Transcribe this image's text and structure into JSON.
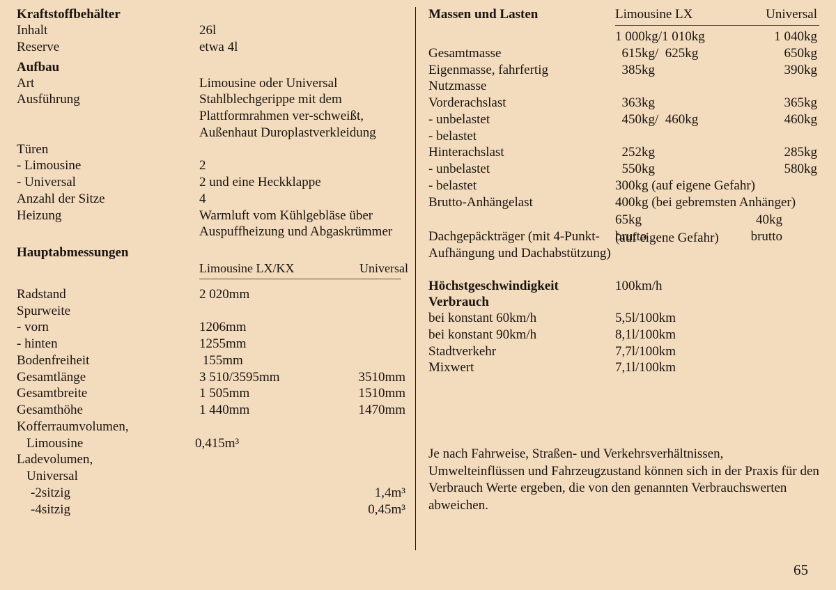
{
  "page_number": "65",
  "left": {
    "sec_fuel": {
      "title": "Kraftstoffbehälter",
      "rows": [
        {
          "label": "Inhalt",
          "value": "26l"
        },
        {
          "label": "Reserve",
          "value": "etwa 4l"
        }
      ]
    },
    "sec_body": {
      "title": "Aufbau",
      "rows": [
        {
          "label": "Art",
          "value": "Limousine oder Universal"
        },
        {
          "label": "Ausführung",
          "value": "Stahlblechgerippe mit dem Plattformrahmen ver-schweißt, Außenhaut Duroplastverkleidung"
        },
        {
          "label": "Türen",
          "value": ""
        },
        {
          "label": "- Limousine",
          "value": "2"
        },
        {
          "label": "- Universal",
          "value": "2 und eine Heckklappe"
        },
        {
          "label": "Anzahl der Sitze",
          "value": "4"
        },
        {
          "label": "Heizung",
          "value": "Warmluft vom Kühlgebläse über Auspuffheizung und Abgaskrümmer"
        }
      ]
    },
    "sec_dims": {
      "title": "Hauptabmessungen",
      "col_header": {
        "b": "Limousine LX/KX",
        "c": "Universal"
      },
      "rows": [
        {
          "a": "Radstand",
          "b": "2 020mm",
          "c": ""
        },
        {
          "a": "Spurweite",
          "b": "",
          "c": ""
        },
        {
          "a": "- vorn",
          "b": "1206mm",
          "c": ""
        },
        {
          "a": "- hinten",
          "b": "1255mm",
          "c": ""
        },
        {
          "a": "Bodenfreiheit",
          "b": " 155mm",
          "c": ""
        },
        {
          "a": "Gesamtlänge",
          "b": "3 510/3595mm",
          "c": "3510mm"
        },
        {
          "a": "Gesamtbreite",
          "b": "1 505mm",
          "c": "1510mm"
        },
        {
          "a": "Gesamthöhe",
          "b": "1 440mm",
          "c": "1470mm"
        }
      ],
      "trunk": {
        "label1": "Kofferraumvolumen,",
        "label2": "Limousine",
        "value": "0,415m³"
      },
      "cargo": {
        "label1": "Ladevolumen,",
        "label2": "Universal",
        "rows": [
          {
            "label": "-2sitzig",
            "value": "1,4m³"
          },
          {
            "label": "-4sitzig",
            "value": "0,45m³"
          }
        ]
      }
    }
  },
  "right": {
    "sec_mass": {
      "title": "Massen und Lasten",
      "col_header": {
        "b": "Limousine LX",
        "c": "Universal"
      },
      "rows": [
        {
          "a": "",
          "b": "1 000kg/1 010kg",
          "c": "1 040kg"
        },
        {
          "a": "Gesamtmasse",
          "b": "  615kg/  625kg",
          "c": "650kg"
        },
        {
          "a": "Eigenmasse, fahrfertig",
          "b": "  385kg",
          "c": "390kg"
        },
        {
          "a": "Nutzmasse",
          "b": "",
          "c": ""
        },
        {
          "a": "Vorderachslast",
          "b": "  363kg",
          "c": "365kg"
        },
        {
          "a": "- unbelastet",
          "b": "  450kg/  460kg",
          "c": "460kg"
        },
        {
          "a": "- belastet",
          "b": "",
          "c": ""
        },
        {
          "a": "Hinterachslast",
          "b": "  252kg",
          "c": "285kg"
        },
        {
          "a": "- unbelastet",
          "b": "  550kg",
          "c": "580kg"
        },
        {
          "a": "- belastet",
          "b_span": "300kg (auf eigene Gefahr)"
        },
        {
          "a": "Brutto-Anhängelast",
          "b_span": "400kg (bei gebremsten Anhänger)"
        }
      ],
      "roof": {
        "label": "Dachgepäckträger (mit 4-Punkt-Aufhängung und Dachabstützung)",
        "v1": "65kg brutto",
        "v2": "40kg brutto",
        "note": "(auf eigene Gefahr)"
      }
    },
    "sec_speed": {
      "title": "Höchstgeschwindigkeit",
      "value": "100km/h"
    },
    "sec_cons": {
      "title": "Verbrauch",
      "rows": [
        {
          "label": "bei konstant 60km/h",
          "value": "5,5l/100km"
        },
        {
          "label": "bei konstant 90km/h",
          "value": "8,1l/100km"
        },
        {
          "label": "Stadtverkehr",
          "value": "7,7l/100km"
        },
        {
          "label": "Mixwert",
          "value": "7,1l/100km"
        }
      ]
    },
    "note": "Je nach Fahrweise, Straßen- und Verkehrsverhältnissen, Umwelteinflüssen und Fahrzeugzustand können sich in der Praxis für den Verbrauch Werte ergeben, die von den genannten Verbrauchswerten abweichen."
  }
}
